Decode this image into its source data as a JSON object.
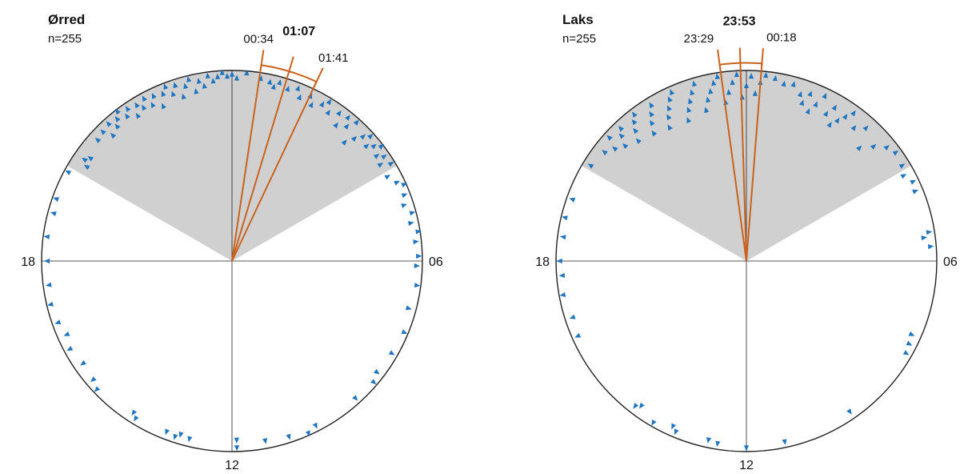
{
  "chart_data": [
    {
      "type": "scatter",
      "subtype": "circular-24h",
      "title": "Ørred",
      "subtitle": "n=255",
      "hour_labels": {
        "top": "",
        "right": "06",
        "bottom": "12",
        "left": "18"
      },
      "night_window_hours": [
        20.0,
        4.0
      ],
      "mean": {
        "time": "01:07",
        "hour": 1.117
      },
      "ci_low": {
        "time": "00:34",
        "hour": 0.567
      },
      "ci_high": {
        "time": "01:41",
        "hour": 1.683
      },
      "points": [
        {
          "hour": 19.9,
          "r": 0.98
        },
        {
          "hour": 20.2,
          "r": 0.91
        },
        {
          "hour": 20.3,
          "r": 0.94
        },
        {
          "hour": 20.4,
          "r": 0.92
        },
        {
          "hour": 20.8,
          "r": 0.95
        },
        {
          "hour": 21.0,
          "r": 0.96
        },
        {
          "hour": 21.1,
          "r": 0.91
        },
        {
          "hour": 21.2,
          "r": 0.97
        },
        {
          "hour": 21.3,
          "r": 0.93
        },
        {
          "hour": 21.4,
          "r": 0.96
        },
        {
          "hour": 21.5,
          "r": 0.99
        },
        {
          "hour": 21.6,
          "r": 0.94
        },
        {
          "hour": 21.7,
          "r": 0.97
        },
        {
          "hour": 21.8,
          "r": 0.91
        },
        {
          "hour": 21.9,
          "r": 0.96
        },
        {
          "hour": 22.0,
          "r": 0.93
        },
        {
          "hour": 22.1,
          "r": 0.97
        },
        {
          "hour": 22.2,
          "r": 0.92
        },
        {
          "hour": 22.3,
          "r": 0.96
        },
        {
          "hour": 22.4,
          "r": 0.89
        },
        {
          "hour": 22.5,
          "r": 0.95
        },
        {
          "hour": 22.6,
          "r": 0.98
        },
        {
          "hour": 22.7,
          "r": 0.93
        },
        {
          "hour": 22.8,
          "r": 0.97
        },
        {
          "hour": 22.9,
          "r": 0.9
        },
        {
          "hour": 23.0,
          "r": 0.95
        },
        {
          "hour": 23.1,
          "r": 0.98
        },
        {
          "hour": 23.2,
          "r": 0.91
        },
        {
          "hour": 23.3,
          "r": 0.96
        },
        {
          "hour": 23.4,
          "r": 0.93
        },
        {
          "hour": 23.5,
          "r": 0.98
        },
        {
          "hour": 23.6,
          "r": 0.95
        },
        {
          "hour": 23.7,
          "r": 0.97
        },
        {
          "hour": 23.8,
          "r": 0.99
        },
        {
          "hour": 23.9,
          "r": 0.97
        },
        {
          "hour": 0.0,
          "r": 0.98
        },
        {
          "hour": 0.1,
          "r": 0.96
        },
        {
          "hour": 0.3,
          "r": 0.99
        },
        {
          "hour": 0.6,
          "r": 0.97
        },
        {
          "hour": 0.8,
          "r": 0.96
        },
        {
          "hour": 0.9,
          "r": 0.94
        },
        {
          "hour": 1.0,
          "r": 0.97
        },
        {
          "hour": 1.2,
          "r": 0.95
        },
        {
          "hour": 1.4,
          "r": 0.97
        },
        {
          "hour": 1.5,
          "r": 0.93
        },
        {
          "hour": 1.7,
          "r": 0.96
        },
        {
          "hour": 1.8,
          "r": 0.92
        },
        {
          "hour": 2.0,
          "r": 0.95
        },
        {
          "hour": 2.1,
          "r": 0.98
        },
        {
          "hour": 2.2,
          "r": 0.93
        },
        {
          "hour": 2.4,
          "r": 0.96
        },
        {
          "hour": 2.5,
          "r": 0.9
        },
        {
          "hour": 2.6,
          "r": 0.97
        },
        {
          "hour": 2.7,
          "r": 0.93
        },
        {
          "hour": 2.8,
          "r": 0.98
        },
        {
          "hour": 2.9,
          "r": 0.86
        },
        {
          "hour": 3.0,
          "r": 0.91
        },
        {
          "hour": 3.1,
          "r": 0.95
        },
        {
          "hour": 3.2,
          "r": 0.98
        },
        {
          "hour": 3.3,
          "r": 0.93
        },
        {
          "hour": 3.4,
          "r": 0.96
        },
        {
          "hour": 3.5,
          "r": 0.99
        },
        {
          "hour": 3.6,
          "r": 0.94
        },
        {
          "hour": 3.7,
          "r": 0.97
        },
        {
          "hour": 3.8,
          "r": 0.93
        },
        {
          "hour": 3.9,
          "r": 0.98
        },
        {
          "hour": 4.1,
          "r": 0.93
        },
        {
          "hour": 4.3,
          "r": 0.96
        },
        {
          "hour": 4.4,
          "r": 0.99
        },
        {
          "hour": 4.6,
          "r": 0.97
        },
        {
          "hour": 4.8,
          "r": 0.95
        },
        {
          "hour": 5.0,
          "r": 0.98
        },
        {
          "hour": 5.2,
          "r": 0.96
        },
        {
          "hour": 5.4,
          "r": 0.99
        },
        {
          "hour": 5.6,
          "r": 0.97
        },
        {
          "hour": 5.9,
          "r": 0.98
        },
        {
          "hour": 6.1,
          "r": 0.97
        },
        {
          "hour": 6.5,
          "r": 0.98
        },
        {
          "hour": 7.0,
          "r": 0.96
        },
        {
          "hour": 7.5,
          "r": 0.98
        },
        {
          "hour": 8.0,
          "r": 0.97
        },
        {
          "hour": 8.5,
          "r": 0.96
        },
        {
          "hour": 8.7,
          "r": 0.98
        },
        {
          "hour": 9.2,
          "r": 0.97
        },
        {
          "hour": 10.2,
          "r": 0.97
        },
        {
          "hour": 10.4,
          "r": 0.99
        },
        {
          "hour": 10.8,
          "r": 0.97
        },
        {
          "hour": 11.3,
          "r": 0.96
        },
        {
          "hour": 11.9,
          "r": 0.94
        },
        {
          "hour": 11.9,
          "r": 0.98
        },
        {
          "hour": 12.9,
          "r": 0.96
        },
        {
          "hour": 13.1,
          "r": 0.95
        },
        {
          "hour": 13.2,
          "r": 0.97
        },
        {
          "hour": 13.4,
          "r": 0.96
        },
        {
          "hour": 14.1,
          "r": 0.97
        },
        {
          "hour": 14.2,
          "r": 0.95
        },
        {
          "hour": 15.1,
          "r": 0.98
        },
        {
          "hour": 15.3,
          "r": 0.96
        },
        {
          "hour": 15.7,
          "r": 0.95
        },
        {
          "hour": 16.1,
          "r": 0.97
        },
        {
          "hour": 16.4,
          "r": 0.95
        },
        {
          "hour": 16.7,
          "r": 0.97
        },
        {
          "hour": 17.1,
          "r": 0.98
        },
        {
          "hour": 17.5,
          "r": 0.97
        },
        {
          "hour": 18.0,
          "r": 0.97
        },
        {
          "hour": 18.5,
          "r": 0.98
        },
        {
          "hour": 19.0,
          "r": 0.97
        },
        {
          "hour": 19.3,
          "r": 0.98
        }
      ]
    },
    {
      "type": "scatter",
      "subtype": "circular-24h",
      "title": "Laks",
      "subtitle": "n=255",
      "hour_labels": {
        "top": "",
        "right": "06",
        "bottom": "12",
        "left": "18"
      },
      "night_window_hours": [
        20.0,
        4.0
      ],
      "mean": {
        "time": "23:53",
        "hour": 23.883
      },
      "ci_low": {
        "time": "23:29",
        "hour": 23.483
      },
      "ci_high": {
        "time": "00:18",
        "hour": 0.3
      },
      "points": [
        {
          "hour": 20.1,
          "r": 0.96
        },
        {
          "hour": 20.5,
          "r": 0.94
        },
        {
          "hour": 20.7,
          "r": 0.91
        },
        {
          "hour": 20.8,
          "r": 0.97
        },
        {
          "hour": 20.9,
          "r": 0.88
        },
        {
          "hour": 21.0,
          "r": 0.93
        },
        {
          "hour": 21.1,
          "r": 0.96
        },
        {
          "hour": 21.2,
          "r": 0.85
        },
        {
          "hour": 21.3,
          "r": 0.9
        },
        {
          "hour": 21.4,
          "r": 0.94
        },
        {
          "hour": 21.5,
          "r": 0.97
        },
        {
          "hour": 21.6,
          "r": 0.83
        },
        {
          "hour": 21.7,
          "r": 0.88
        },
        {
          "hour": 21.8,
          "r": 0.92
        },
        {
          "hour": 21.9,
          "r": 0.96
        },
        {
          "hour": 22.0,
          "r": 0.81
        },
        {
          "hour": 22.1,
          "r": 0.86
        },
        {
          "hour": 22.2,
          "r": 0.9
        },
        {
          "hour": 22.3,
          "r": 0.94
        },
        {
          "hour": 22.4,
          "r": 0.97
        },
        {
          "hour": 22.5,
          "r": 0.8
        },
        {
          "hour": 22.6,
          "r": 0.85
        },
        {
          "hour": 22.7,
          "r": 0.89
        },
        {
          "hour": 22.8,
          "r": 0.93
        },
        {
          "hour": 22.9,
          "r": 0.97
        },
        {
          "hour": 23.0,
          "r": 0.82
        },
        {
          "hour": 23.1,
          "r": 0.87
        },
        {
          "hour": 23.2,
          "r": 0.91
        },
        {
          "hour": 23.3,
          "r": 0.95
        },
        {
          "hour": 23.4,
          "r": 0.98
        },
        {
          "hour": 23.5,
          "r": 0.84
        },
        {
          "hour": 23.6,
          "r": 0.89
        },
        {
          "hour": 23.7,
          "r": 0.94
        },
        {
          "hour": 23.8,
          "r": 0.98
        },
        {
          "hour": 23.9,
          "r": 0.86
        },
        {
          "hour": 0.0,
          "r": 0.92
        },
        {
          "hour": 0.1,
          "r": 0.97
        },
        {
          "hour": 0.2,
          "r": 0.88
        },
        {
          "hour": 0.3,
          "r": 0.94
        },
        {
          "hour": 0.4,
          "r": 0.98
        },
        {
          "hour": 0.6,
          "r": 0.97
        },
        {
          "hour": 0.8,
          "r": 0.95
        },
        {
          "hour": 1.0,
          "r": 0.96
        },
        {
          "hour": 1.2,
          "r": 0.92
        },
        {
          "hour": 1.3,
          "r": 0.88
        },
        {
          "hour": 1.4,
          "r": 0.94
        },
        {
          "hour": 1.5,
          "r": 0.85
        },
        {
          "hour": 1.6,
          "r": 0.9
        },
        {
          "hour": 1.7,
          "r": 0.96
        },
        {
          "hour": 1.9,
          "r": 0.88
        },
        {
          "hour": 2.0,
          "r": 0.93
        },
        {
          "hour": 2.1,
          "r": 0.84
        },
        {
          "hour": 2.2,
          "r": 0.88
        },
        {
          "hour": 2.3,
          "r": 0.92
        },
        {
          "hour": 2.4,
          "r": 0.96
        },
        {
          "hour": 2.6,
          "r": 0.9
        },
        {
          "hour": 2.8,
          "r": 0.94
        },
        {
          "hour": 3.0,
          "r": 0.84
        },
        {
          "hour": 3.2,
          "r": 0.9
        },
        {
          "hour": 3.4,
          "r": 0.95
        },
        {
          "hour": 3.6,
          "r": 0.97
        },
        {
          "hour": 3.9,
          "r": 0.96
        },
        {
          "hour": 4.1,
          "r": 0.94
        },
        {
          "hour": 4.3,
          "r": 0.97
        },
        {
          "hour": 4.5,
          "r": 0.96
        },
        {
          "hour": 5.4,
          "r": 0.97
        },
        {
          "hour": 5.5,
          "r": 0.94
        },
        {
          "hour": 5.7,
          "r": 0.97
        },
        {
          "hour": 7.6,
          "r": 0.95
        },
        {
          "hour": 7.8,
          "r": 0.96
        },
        {
          "hour": 8.0,
          "r": 0.97
        },
        {
          "hour": 9.7,
          "r": 0.96
        },
        {
          "hour": 11.2,
          "r": 0.97
        },
        {
          "hour": 12.0,
          "r": 0.98
        },
        {
          "hour": 12.6,
          "r": 0.97
        },
        {
          "hour": 12.8,
          "r": 0.96
        },
        {
          "hour": 13.5,
          "r": 0.97
        },
        {
          "hour": 13.6,
          "r": 0.95
        },
        {
          "hour": 14.0,
          "r": 0.98
        },
        {
          "hour": 14.4,
          "r": 0.94
        },
        {
          "hour": 14.5,
          "r": 0.96
        },
        {
          "hour": 16.4,
          "r": 0.97
        },
        {
          "hour": 16.8,
          "r": 0.96
        },
        {
          "hour": 17.3,
          "r": 0.98
        },
        {
          "hour": 17.7,
          "r": 0.97
        },
        {
          "hour": 18.0,
          "r": 0.98
        },
        {
          "hour": 18.5,
          "r": 0.97
        },
        {
          "hour": 18.9,
          "r": 0.98
        },
        {
          "hour": 19.3,
          "r": 0.97
        }
      ]
    }
  ],
  "colors": {
    "point": "#1f75c0",
    "mean_line": "#c8631e",
    "night_fill": "#d0d0d0",
    "axis": "#222222"
  }
}
